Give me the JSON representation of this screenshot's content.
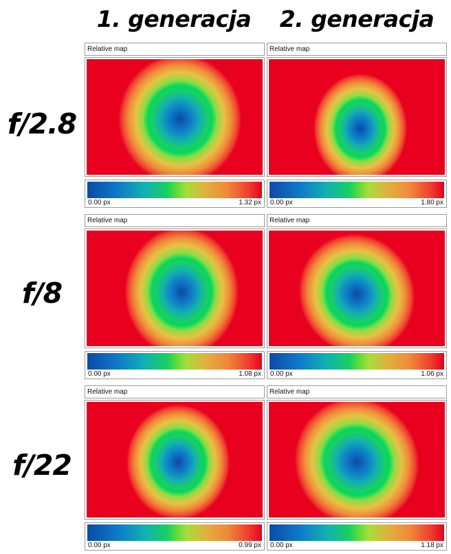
{
  "columns": [
    "1. generacja",
    "2. generacja"
  ],
  "rows": [
    "f/2.8",
    "f/8",
    "f/22"
  ],
  "panel_title": "Relative map",
  "colorscale": [
    "#0b4aa6",
    "#12b1b0",
    "#1ad060",
    "#a8dc3a",
    "#f08a3a",
    "#e8001e"
  ],
  "panels": [
    {
      "row": "f/2.8",
      "column": "1. generacja",
      "scale_min": "0.00 px",
      "scale_max": "1.32 px"
    },
    {
      "row": "f/2.8",
      "column": "2. generacja",
      "scale_min": "0.00 px",
      "scale_max": "1.80 px"
    },
    {
      "row": "f/8",
      "column": "1. generacja",
      "scale_min": "0.00 px",
      "scale_max": "1.08 px"
    },
    {
      "row": "f/8",
      "column": "2. generacja",
      "scale_min": "0.00 px",
      "scale_max": "1.06 px"
    },
    {
      "row": "f/22",
      "column": "1. generacja",
      "scale_min": "0.00 px",
      "scale_max": "0.99 px"
    },
    {
      "row": "f/22",
      "column": "2. generacja",
      "scale_min": "0.00 px",
      "scale_max": "1.18 px"
    }
  ],
  "chart_data": {
    "type": "heatmap",
    "title": "",
    "xlabel": "",
    "ylabel": "",
    "panel_title": "Relative map",
    "unit": "px",
    "columns": [
      "1. generacja",
      "2. generacja"
    ],
    "rows": [
      "f/2.8",
      "f/8",
      "f/22"
    ],
    "ranges": [
      {
        "row": "f/2.8",
        "column": "1. generacja",
        "min": 0.0,
        "max": 1.32
      },
      {
        "row": "f/2.8",
        "column": "2. generacja",
        "min": 0.0,
        "max": 1.8
      },
      {
        "row": "f/8",
        "column": "1. generacja",
        "min": 0.0,
        "max": 1.08
      },
      {
        "row": "f/8",
        "column": "2. generacja",
        "min": 0.0,
        "max": 1.06
      },
      {
        "row": "f/22",
        "column": "1. generacja",
        "min": 0.0,
        "max": 0.99
      },
      {
        "row": "f/22",
        "column": "2. generacja",
        "min": 0.0,
        "max": 1.18
      }
    ]
  }
}
